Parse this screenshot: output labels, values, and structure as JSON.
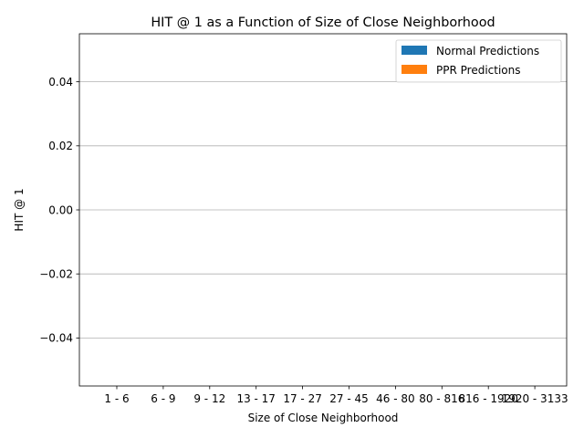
{
  "chart_data": {
    "type": "bar",
    "title": "HIT @ 1 as a Function of Size of Close Neighborhood",
    "xlabel": "Size of Close Neighborhood",
    "ylabel": "HIT @ 1",
    "categories": [
      "1 - 6",
      "6 - 9",
      "9 - 12",
      "13 - 17",
      "17 - 27",
      "27 - 45",
      "46 - 80",
      "80 - 816",
      "816 - 1920",
      "1920 - 3133"
    ],
    "series": [
      {
        "name": "Normal Predictions",
        "color": "#1f77b4",
        "values": [
          0,
          0,
          0,
          0,
          0,
          0,
          0,
          0,
          0,
          0
        ]
      },
      {
        "name": "PPR Predictions",
        "color": "#ff7f0e",
        "values": [
          0,
          0,
          0,
          0,
          0,
          0,
          0,
          0,
          0,
          0
        ]
      }
    ],
    "ylim": [
      -0.055,
      0.055
    ],
    "yticks": [
      -0.04,
      -0.02,
      0.0,
      0.02,
      0.04
    ],
    "ytick_labels": [
      "−0.04",
      "−0.02",
      "0.00",
      "0.02",
      "0.04"
    ],
    "grid": "y",
    "legend_position": "top-right"
  }
}
